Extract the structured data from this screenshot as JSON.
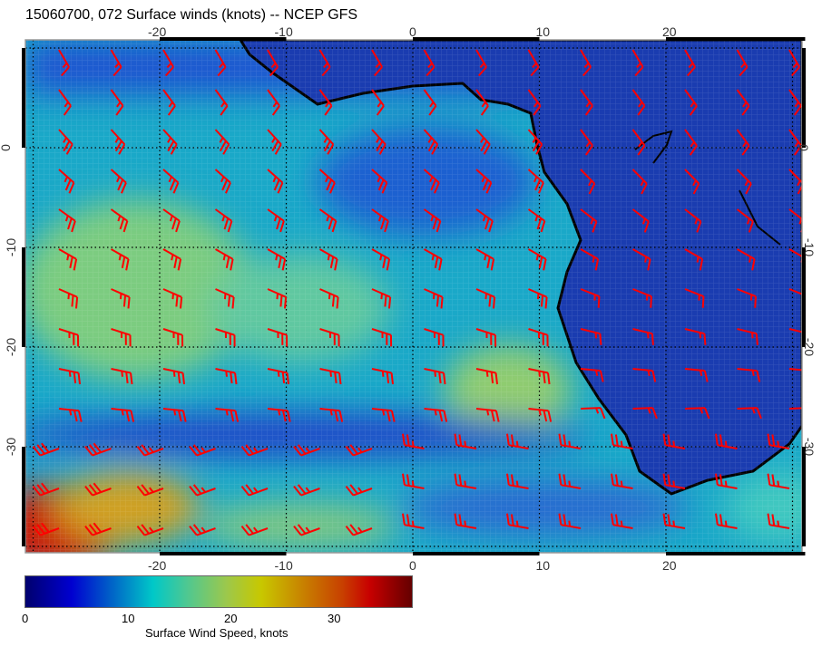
{
  "title": "15060700, 072 Surface winds (knots) -- NCEP GFS",
  "map": {
    "lon_labels": [
      "-20",
      "-10",
      "0",
      "10",
      "20"
    ],
    "lat_labels": [
      "0",
      "-10",
      "-20",
      "-30"
    ],
    "barb_color": "#ff0000",
    "coast_color": "#000000"
  },
  "colorbar": {
    "ticks": [
      "0",
      "10",
      "20",
      "30"
    ],
    "label": "Surface Wind Speed, knots",
    "range": [
      0,
      37.5
    ],
    "colors": [
      "#00006e",
      "#0000d0",
      "#00c8c8",
      "#c8c800",
      "#c80000",
      "#640000"
    ]
  }
}
